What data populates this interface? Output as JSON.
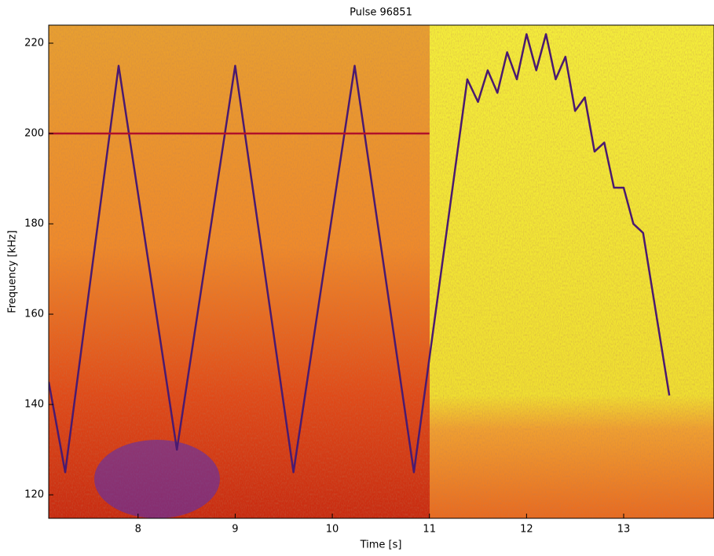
{
  "chart_data": {
    "type": "spectrogram",
    "title": "Pulse 96851",
    "x_label": "Time [s]",
    "y_label": "Frequency [kHz]",
    "xlim": [
      7.08,
      13.93
    ],
    "ylim": [
      114.8,
      224
    ],
    "xticks": [
      8,
      9,
      10,
      11,
      12,
      13
    ],
    "yticks": [
      120,
      140,
      160,
      180,
      200,
      220
    ],
    "series": [
      {
        "color": "#4a1a70",
        "x": [
          7.08,
          7.25,
          7.8,
          8.4,
          9.0,
          9.6,
          10.23,
          10.84,
          11.39,
          11.5,
          11.6,
          11.7,
          11.8,
          11.9,
          12.0,
          12.1,
          12.2,
          12.3,
          12.4,
          12.5,
          12.6,
          12.7,
          12.8,
          12.9,
          13.0,
          13.1,
          13.2,
          13.47
        ],
        "values": [
          145,
          125,
          215,
          130,
          215,
          125,
          215,
          125,
          212,
          207,
          214,
          209,
          218,
          212,
          222,
          214,
          222,
          212,
          217,
          205,
          208,
          196,
          198,
          188,
          188,
          180,
          178,
          142
        ]
      },
      {
        "color": "#b0102a",
        "x": [
          7.08,
          11.0
        ],
        "values": [
          200,
          200
        ]
      }
    ]
  }
}
